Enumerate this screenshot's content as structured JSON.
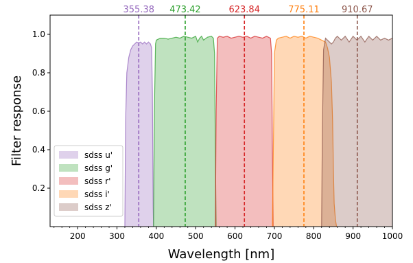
{
  "chart_data": {
    "type": "area",
    "xlabel": "Wavelength [nm]",
    "ylabel": "Filter response",
    "xlim": [
      130,
      1000
    ],
    "ylim": [
      0,
      1.1
    ],
    "x_ticks": [
      200,
      300,
      400,
      500,
      600,
      700,
      800,
      900,
      1000
    ],
    "y_ticks": [
      0.2,
      0.4,
      0.6,
      0.8,
      1.0
    ],
    "x_tick_labels": [
      "200",
      "300",
      "400",
      "500",
      "600",
      "700",
      "800",
      "900",
      "1000"
    ],
    "y_tick_labels": [
      "0.2",
      "0.4",
      "0.6",
      "0.8",
      "1.0"
    ],
    "legend_position": "lower-left",
    "grid": false,
    "series": [
      {
        "name": "sdss u'",
        "color": "#9467bd",
        "center": 355.38,
        "center_label": "355.38",
        "x": [
          320,
          322,
          325,
          330,
          335,
          340,
          345,
          350,
          355,
          360,
          365,
          370,
          375,
          380,
          385,
          388,
          390,
          391,
          392,
          393
        ],
        "y": [
          0,
          0.55,
          0.8,
          0.88,
          0.92,
          0.94,
          0.95,
          0.96,
          0.955,
          0.96,
          0.95,
          0.96,
          0.95,
          0.96,
          0.95,
          0.93,
          0.7,
          0.4,
          0.1,
          0
        ]
      },
      {
        "name": "sdss g'",
        "color": "#2ca02c",
        "center": 473.42,
        "center_label": "473.42",
        "x": [
          393,
          395,
          398,
          400,
          410,
          420,
          430,
          440,
          450,
          460,
          470,
          480,
          490,
          500,
          505,
          510,
          515,
          520,
          530,
          540,
          545,
          548,
          550,
          552
        ],
        "y": [
          0,
          0.6,
          0.95,
          0.97,
          0.98,
          0.98,
          0.975,
          0.98,
          0.985,
          0.98,
          0.99,
          0.985,
          0.98,
          0.99,
          0.96,
          0.98,
          0.99,
          0.97,
          0.985,
          0.99,
          0.98,
          0.9,
          0.4,
          0
        ]
      },
      {
        "name": "sdss r'",
        "color": "#d62728",
        "center": 623.84,
        "center_label": "623.84",
        "x": [
          550,
          552,
          555,
          560,
          570,
          580,
          590,
          600,
          610,
          620,
          630,
          640,
          650,
          660,
          670,
          680,
          690,
          693,
          695,
          697
        ],
        "y": [
          0,
          0.6,
          0.98,
          0.99,
          0.985,
          0.99,
          0.98,
          0.985,
          0.99,
          0.985,
          0.99,
          0.98,
          0.99,
          0.985,
          0.98,
          0.99,
          0.98,
          0.9,
          0.4,
          0
        ]
      },
      {
        "name": "sdss i'",
        "color": "#ff7f0e",
        "center": 775.11,
        "center_label": "775.11",
        "x": [
          695,
          698,
          700,
          705,
          710,
          720,
          730,
          740,
          750,
          760,
          770,
          780,
          790,
          800,
          810,
          820,
          830,
          835,
          840,
          845,
          848,
          850,
          852,
          855,
          858
        ],
        "y": [
          0,
          0.5,
          0.9,
          0.97,
          0.98,
          0.985,
          0.99,
          0.98,
          0.99,
          0.985,
          0.99,
          0.98,
          0.99,
          0.985,
          0.98,
          0.97,
          0.96,
          0.93,
          0.88,
          0.75,
          0.55,
          0.3,
          0.12,
          0.04,
          0
        ]
      },
      {
        "name": "sdss z'",
        "color": "#8c564b",
        "center": 910.67,
        "center_label": "910.67",
        "x": [
          820,
          822,
          825,
          830,
          835,
          840,
          845,
          850,
          855,
          860,
          870,
          880,
          890,
          900,
          910,
          920,
          930,
          940,
          950,
          960,
          970,
          980,
          990,
          1000
        ],
        "y": [
          0,
          0.5,
          0.92,
          0.98,
          0.97,
          0.96,
          0.95,
          0.96,
          0.98,
          0.99,
          0.97,
          0.99,
          0.96,
          0.99,
          0.97,
          0.99,
          0.96,
          0.99,
          0.97,
          0.99,
          0.97,
          0.98,
          0.97,
          0.98
        ]
      }
    ]
  }
}
